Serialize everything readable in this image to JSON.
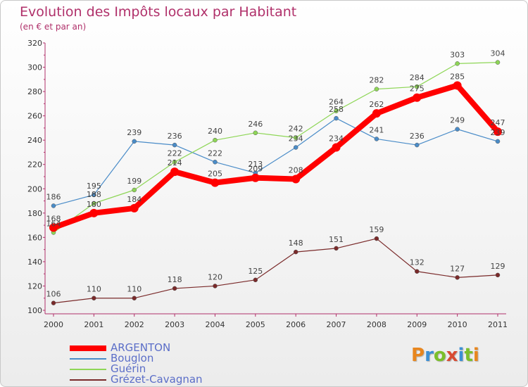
{
  "title": "Evolution des Impôts locaux par Habitant",
  "subtitle": "(en € et par an)",
  "logo": {
    "text": "Proxiti",
    "letters": [
      "P",
      "r",
      "o",
      "x",
      "i",
      "t",
      "i"
    ],
    "colors": [
      "#e8861e",
      "#3c8fd4",
      "#7bbf2a",
      "#d84b32",
      "#3c8fd4",
      "#7bbf2a",
      "#e8861e"
    ]
  },
  "chart_data": {
    "type": "line",
    "title": "Evolution des Impôts locaux par Habitant",
    "subtitle": "(en € et par an)",
    "xlabel": "",
    "ylabel": "",
    "x": [
      "2000",
      "2001",
      "2002",
      "2003",
      "2004",
      "2005",
      "2006",
      "2007",
      "2008",
      "2009",
      "2010",
      "2011"
    ],
    "ylim": [
      100,
      320
    ],
    "yticks": [
      100,
      120,
      140,
      160,
      180,
      200,
      220,
      240,
      260,
      280,
      300,
      320
    ],
    "grid": false,
    "legend_position": "bottom-left",
    "series": [
      {
        "name": "ARGENTON",
        "color": "#ff0000",
        "emphasis": true,
        "values": [
          168,
          180,
          184,
          214,
          205,
          209,
          208,
          234,
          262,
          275,
          285,
          247
        ],
        "labels": [
          "168",
          "180",
          "184",
          "214",
          "205",
          "209",
          "208",
          "234",
          "262",
          "275",
          "285",
          "247"
        ]
      },
      {
        "name": "Bouglon",
        "color": "#4a8cc8",
        "values": [
          186,
          195,
          239,
          236,
          222,
          213,
          234,
          258,
          241,
          236,
          249,
          239
        ],
        "labels": [
          "186",
          "195",
          "239",
          "236",
          "222",
          "213",
          "234",
          "258",
          "241",
          "236",
          "249",
          "239"
        ]
      },
      {
        "name": "Guérin",
        "color": "#8ed656",
        "values": [
          164,
          188,
          199,
          222,
          240,
          246,
          242,
          264,
          282,
          284,
          303,
          304
        ],
        "labels": [
          "164",
          "188",
          "199",
          "222",
          "240",
          "246",
          "242",
          "264",
          "282",
          "284",
          "303",
          "304"
        ]
      },
      {
        "name": "Grézet-Cavagnan",
        "color": "#7a2a2a",
        "values": [
          106,
          110,
          110,
          118,
          120,
          125,
          148,
          151,
          159,
          132,
          127,
          129
        ],
        "labels": [
          "106",
          "110",
          "110",
          "118",
          "120",
          "125",
          "148",
          "151",
          "159",
          "132",
          "127",
          "129"
        ]
      }
    ],
    "draw_order": [
      3,
      1,
      2,
      0
    ]
  }
}
